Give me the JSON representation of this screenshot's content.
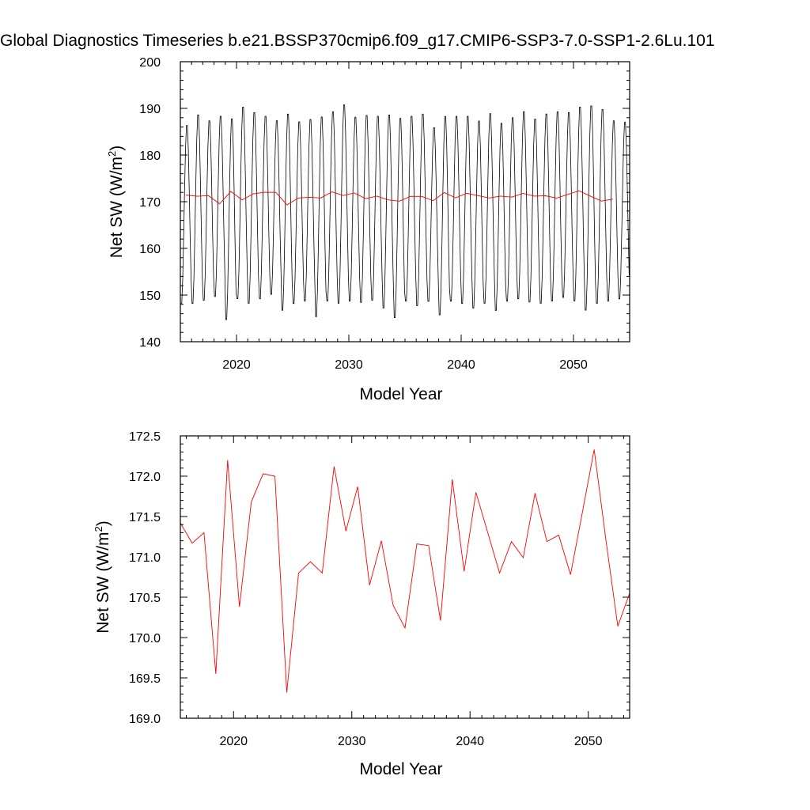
{
  "title": "Global Diagnostics Timeseries b.e21.BSSP370cmip6.f09_g17.CMIP6-SSP3-7.0-SSP1-2.6Lu.101",
  "chart_data": [
    {
      "type": "line",
      "xlabel": "Model Year",
      "ylabel_main": "Net SW (W/m",
      "ylabel_sup": "2",
      "ylabel_tail": ")",
      "xlim": [
        2015,
        2055
      ],
      "ylim": [
        140,
        200
      ],
      "xticks": [
        2020,
        2030,
        2040,
        2050
      ],
      "yticks": [
        140,
        150,
        160,
        170,
        180,
        190,
        200
      ],
      "ytick_labels": [
        "140",
        "150",
        "160",
        "170",
        "180",
        "190",
        "200"
      ],
      "series": [
        {
          "kind": "monthly",
          "color": "#000000",
          "x_start": 2015.0,
          "months_per_year": 12,
          "annual_max": [
            187.0,
            189.3,
            188.0,
            189.0,
            188.5,
            191.0,
            189.8,
            189.0,
            188.0,
            189.5,
            187.8,
            188.3,
            188.9,
            190.0,
            191.5,
            188.8,
            189.2,
            189.0,
            189.3,
            188.6,
            189.0,
            189.5,
            186.5,
            189.0,
            189.0,
            189.0,
            188.0,
            189.6,
            187.5,
            188.7,
            190.0,
            188.4,
            189.5,
            190.0,
            189.8,
            191.0,
            191.3,
            190.5,
            188.0,
            187.7
          ],
          "annual_min": [
            147.5,
            147.5,
            148.2,
            149.0,
            144.0,
            148.5,
            147.5,
            148.5,
            149.5,
            146.0,
            147.5,
            148.0,
            144.6,
            148.0,
            147.5,
            148.0,
            147.7,
            148.2,
            146.5,
            144.4,
            148.0,
            147.0,
            148.0,
            145.0,
            148.0,
            147.5,
            146.5,
            147.5,
            146.0,
            148.0,
            148.5,
            147.8,
            147.5,
            148.0,
            148.8,
            148.0,
            146.0,
            147.5,
            148.0,
            148.5
          ]
        },
        {
          "kind": "annual",
          "color": "#ff0000",
          "x": [
            2015.5,
            2016.5,
            2017.5,
            2018.5,
            2019.5,
            2020.5,
            2021.5,
            2022.5,
            2023.5,
            2024.5,
            2025.5,
            2026.5,
            2027.5,
            2028.5,
            2029.5,
            2030.5,
            2031.5,
            2032.5,
            2033.5,
            2034.5,
            2035.5,
            2036.5,
            2037.5,
            2038.5,
            2039.5,
            2040.5,
            2041.5,
            2042.5,
            2043.5,
            2044.5,
            2045.5,
            2046.5,
            2047.5,
            2048.5,
            2049.5,
            2050.5,
            2051.5,
            2052.5,
            2053.5
          ],
          "values": [
            171.42,
            171.17,
            171.3,
            169.55,
            172.2,
            170.38,
            171.68,
            172.03,
            172.0,
            169.32,
            170.8,
            170.94,
            170.8,
            172.12,
            171.32,
            171.87,
            170.65,
            171.2,
            170.4,
            170.12,
            171.16,
            171.14,
            170.21,
            171.96,
            170.82,
            171.8,
            171.3,
            170.8,
            171.19,
            170.99,
            171.79,
            171.19,
            171.27,
            170.78,
            171.55,
            172.33,
            171.2,
            170.14,
            170.55
          ]
        }
      ]
    },
    {
      "type": "line",
      "xlabel": "Model Year",
      "ylabel_main": "Net SW (W/m",
      "ylabel_sup": "2",
      "ylabel_tail": ")",
      "xlim": [
        2015.5,
        2053.5
      ],
      "ylim": [
        169.0,
        172.5
      ],
      "xticks": [
        2020,
        2030,
        2040,
        2050
      ],
      "yticks": [
        169.0,
        169.5,
        170.0,
        170.5,
        171.0,
        171.5,
        172.0,
        172.5
      ],
      "ytick_labels": [
        "169.0",
        "169.5",
        "170.0",
        "170.5",
        "171.0",
        "171.5",
        "172.0",
        "172.5"
      ],
      "series": [
        {
          "kind": "annual",
          "color": "#ff0000",
          "x": [
            2015.5,
            2016.5,
            2017.5,
            2018.5,
            2019.5,
            2020.5,
            2021.5,
            2022.5,
            2023.5,
            2024.5,
            2025.5,
            2026.5,
            2027.5,
            2028.5,
            2029.5,
            2030.5,
            2031.5,
            2032.5,
            2033.5,
            2034.5,
            2035.5,
            2036.5,
            2037.5,
            2038.5,
            2039.5,
            2040.5,
            2041.5,
            2042.5,
            2043.5,
            2044.5,
            2045.5,
            2046.5,
            2047.5,
            2048.5,
            2049.5,
            2050.5,
            2051.5,
            2052.5,
            2053.5
          ],
          "values": [
            171.42,
            171.17,
            171.3,
            169.55,
            172.2,
            170.38,
            171.68,
            172.03,
            172.0,
            169.32,
            170.8,
            170.94,
            170.8,
            172.12,
            171.32,
            171.87,
            170.65,
            171.2,
            170.4,
            170.12,
            171.16,
            171.14,
            170.21,
            171.96,
            170.82,
            171.8,
            171.3,
            170.8,
            171.19,
            170.99,
            171.79,
            171.19,
            171.27,
            170.78,
            171.55,
            172.33,
            171.2,
            170.14,
            170.55
          ]
        }
      ]
    }
  ]
}
